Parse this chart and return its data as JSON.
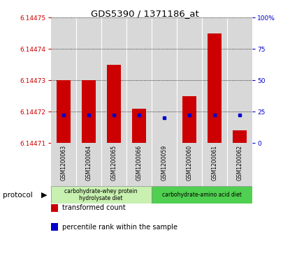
{
  "title": "GDS5390 / 1371186_at",
  "samples": [
    "GSM1200063",
    "GSM1200064",
    "GSM1200065",
    "GSM1200066",
    "GSM1200059",
    "GSM1200060",
    "GSM1200061",
    "GSM1200062"
  ],
  "red_values": [
    6.14473,
    6.14473,
    6.144735,
    6.144721,
    6.14471,
    6.144725,
    6.144745,
    6.144714
  ],
  "blue_values": [
    6.144719,
    6.144719,
    6.144719,
    6.144719,
    6.144718,
    6.144719,
    6.144719,
    6.144719
  ],
  "red_base": 6.14471,
  "ylim_min": 6.14471,
  "ylim_max": 6.14475,
  "yticks": [
    6.14471,
    6.14472,
    6.14473,
    6.14474,
    6.14475
  ],
  "ytick_labels": [
    "6.14471",
    "6.14472",
    "6.14473",
    "6.14474",
    "6.14475"
  ],
  "right_yticks_pct": [
    0,
    25,
    50,
    75,
    100
  ],
  "right_ytick_labels": [
    "0",
    "25",
    "50",
    "75",
    "100%"
  ],
  "groups": [
    {
      "label": "carbohydrate-whey protein\nhydrolysate diet",
      "start": 0,
      "end": 4,
      "color": "#c8f0b0"
    },
    {
      "label": "carbohydrate-amino acid diet",
      "start": 4,
      "end": 8,
      "color": "#50d050"
    }
  ],
  "protocol_label": "protocol",
  "legend_items": [
    {
      "color": "#cc0000",
      "label": "transformed count"
    },
    {
      "color": "#0000cc",
      "label": "percentile rank within the sample"
    }
  ],
  "bar_color": "#cc0000",
  "dot_color": "#0000cc",
  "bar_width": 0.55,
  "col_bg_color": "#d8d8d8",
  "col_border_color": "#ffffff",
  "grid_color": "#000000",
  "title_color": "#000000",
  "left_axis_color": "#cc0000",
  "right_axis_color": "#0000cc",
  "plot_bg": "#ffffff"
}
